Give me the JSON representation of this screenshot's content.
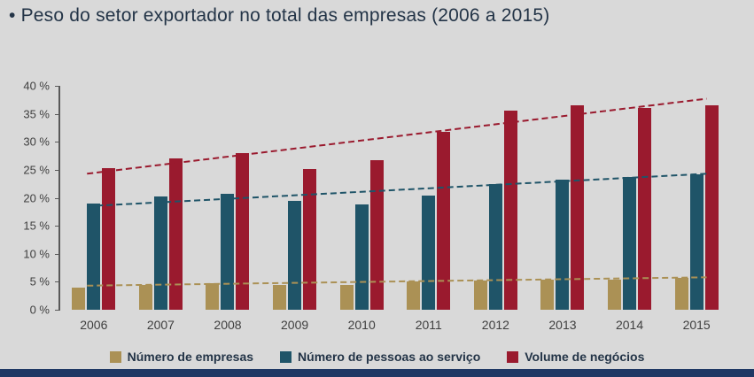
{
  "page": {
    "title": "• Peso do setor exportador no total das empresas (2006 a 2015)",
    "background": "#d9d9d9",
    "footer_bar_color": "#1f3864"
  },
  "chart_data": {
    "type": "bar",
    "title": "Peso do setor exportador no total das empresas (2006 a 2015)",
    "categories": [
      "2006",
      "2007",
      "2008",
      "2009",
      "2010",
      "2011",
      "2012",
      "2013",
      "2014",
      "2015"
    ],
    "series": [
      {
        "name": "Número de empresas",
        "color": "#ab9155",
        "values": [
          4.0,
          4.4,
          4.7,
          4.5,
          4.5,
          5.0,
          5.2,
          5.4,
          5.4,
          5.7
        ],
        "trend": [
          4.3,
          5.8
        ]
      },
      {
        "name": "Número de pessoas ao serviço",
        "color": "#1f5468",
        "values": [
          19.0,
          20.2,
          20.7,
          19.5,
          18.8,
          20.4,
          22.4,
          23.2,
          23.7,
          24.2
        ],
        "trend": [
          18.5,
          24.3
        ]
      },
      {
        "name": "Volume de negócios",
        "color": "#9a1a2e",
        "values": [
          25.3,
          27.0,
          28.0,
          25.2,
          26.8,
          31.8,
          35.5,
          36.5,
          36.0,
          36.5
        ],
        "trend": [
          24.3,
          37.7
        ]
      }
    ],
    "xlabel": "",
    "ylabel": "",
    "ylim": [
      0,
      40
    ],
    "ytick_step": 5,
    "ytick_suffix": " %",
    "grid": false,
    "legend_position": "bottom",
    "trend_lines": "dashed"
  }
}
